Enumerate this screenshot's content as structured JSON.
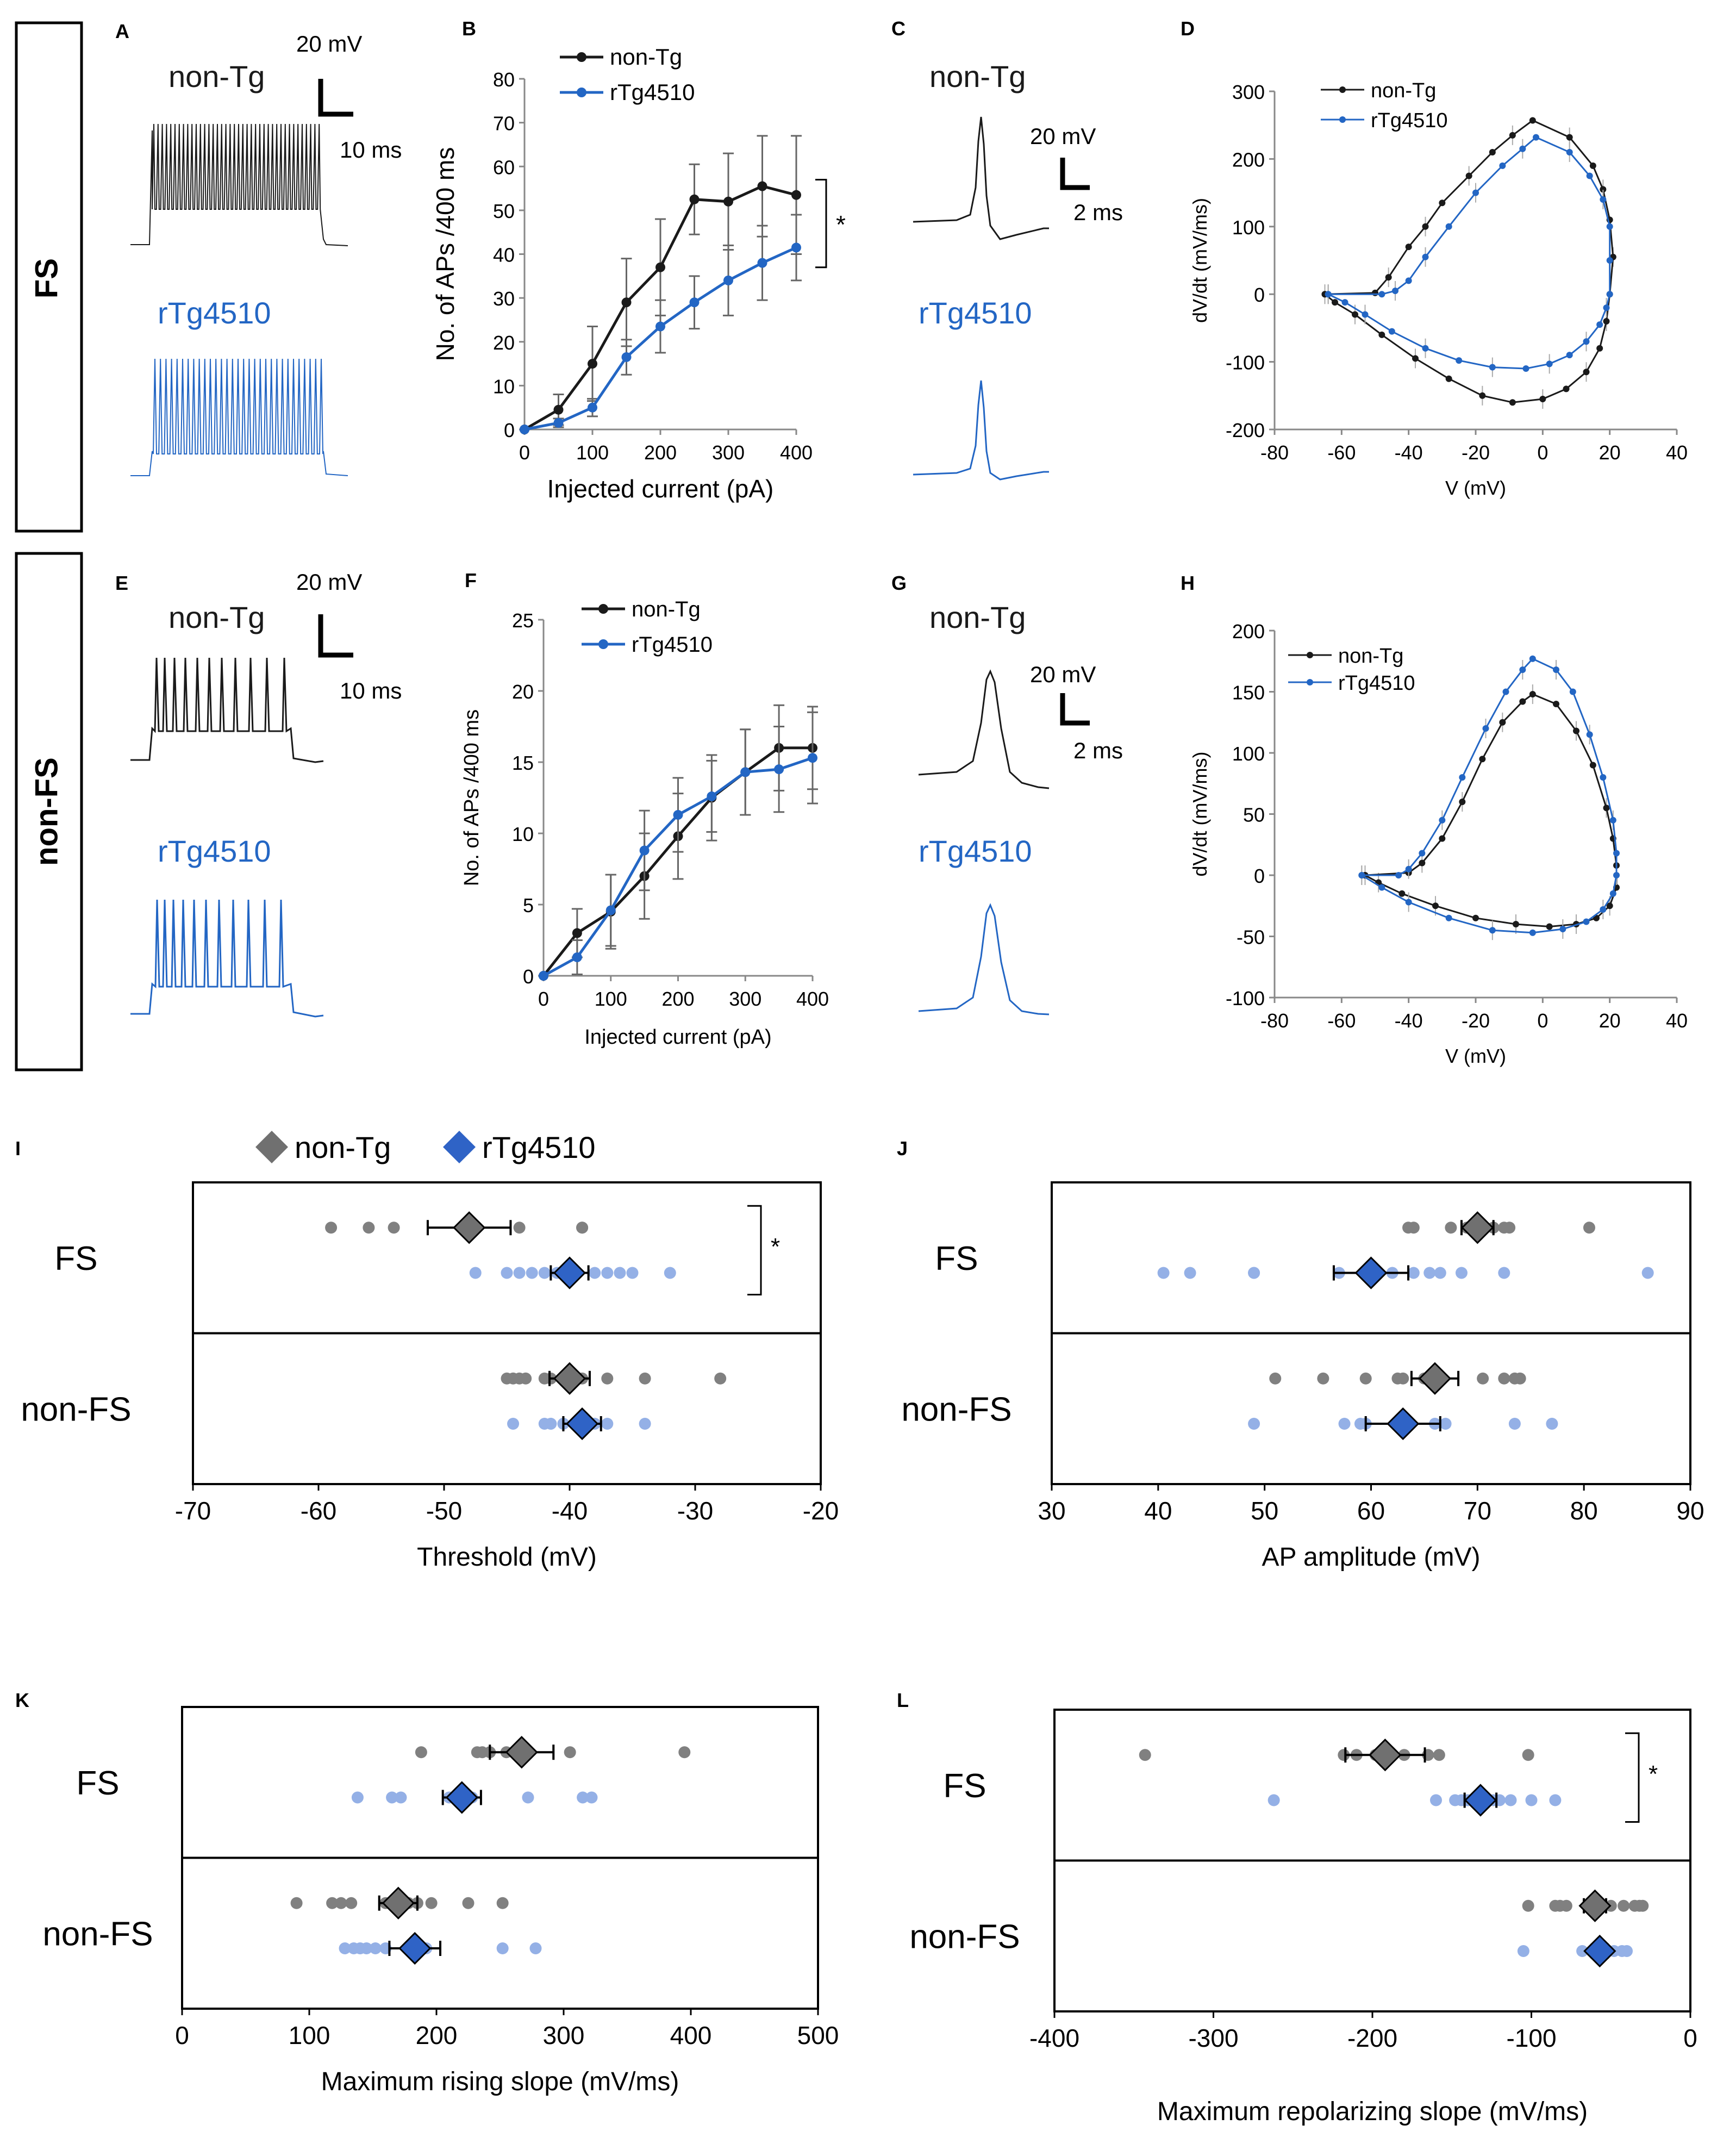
{
  "row_labels": {
    "fs": "FS",
    "nonfs": "non-FS"
  },
  "colors": {
    "nontg": "#1a1a1a",
    "rtg": "#2366c4",
    "nontg_dot": "#808080",
    "rtg_dot": "#94b0e6",
    "nontg_diamond": "#707070",
    "rtg_diamond": "#2f63c6"
  },
  "trace_panels": [
    {
      "panel": "A",
      "label_nontg": "non-Tg",
      "label_rtg": "rTg4510",
      "scale_v": "20 mV",
      "scale_t": "10 ms"
    },
    {
      "panel": "C",
      "label_nontg": "non-Tg",
      "label_rtg": "rTg4510",
      "scale_v": "20 mV",
      "scale_t": "2 ms"
    },
    {
      "panel": "E",
      "label_nontg": "non-Tg",
      "label_rtg": "rTg4510",
      "scale_v": "20 mV",
      "scale_t": "10 ms"
    },
    {
      "panel": "G",
      "label_nontg": "non-Tg",
      "label_rtg": "rTg4510",
      "scale_v": "20 mV",
      "scale_t": "2 ms"
    }
  ],
  "chart_data": [
    {
      "panel": "B",
      "type": "line",
      "xlabel": "Injected current (pA)",
      "ylabel": "No. of APs /400 ms",
      "xlim": [
        0,
        400
      ],
      "ylim": [
        0,
        80
      ],
      "xticks": [
        "0",
        "100",
        "200",
        "300",
        "400"
      ],
      "yticks": [
        "0",
        "10",
        "20",
        "30",
        "40",
        "50",
        "60",
        "70",
        "80"
      ],
      "sig": "*",
      "x": [
        0,
        50,
        100,
        150,
        200,
        250,
        300,
        350,
        400
      ],
      "series": [
        {
          "name": "non-Tg",
          "values": [
            0,
            4.5,
            15,
            29,
            37,
            52.5,
            52,
            55.5,
            53.5
          ],
          "err": [
            0,
            3.5,
            8.5,
            10,
            11,
            8,
            11,
            11.5,
            13.5
          ]
        },
        {
          "name": "rTg4510",
          "values": [
            0,
            1.5,
            5,
            16.5,
            23.5,
            29,
            34,
            38,
            41.5
          ],
          "err": [
            0,
            1,
            2,
            4,
            6,
            6,
            8,
            8.5,
            7.5
          ]
        }
      ]
    },
    {
      "panel": "D",
      "type": "line",
      "xlabel": "V (mV)",
      "ylabel": "dV/dt (mV/ms)",
      "xlim": [
        -80,
        40
      ],
      "ylim": [
        -200,
        300
      ],
      "xticks": [
        "-80",
        "-60",
        "-40",
        "-20",
        "0",
        "20",
        "40"
      ],
      "yticks": [
        "-200",
        "-100",
        "0",
        "100",
        "200",
        "300"
      ],
      "series": [
        {
          "name": "non-Tg",
          "values": [
            [
              -65,
              0
            ],
            [
              -50,
              2
            ],
            [
              -46,
              25
            ],
            [
              -40,
              70
            ],
            [
              -35,
              100
            ],
            [
              -30,
              135
            ],
            [
              -22,
              175
            ],
            [
              -15,
              210
            ],
            [
              -9,
              235
            ],
            [
              -3,
              257
            ],
            [
              8,
              232
            ],
            [
              15,
              190
            ],
            [
              18,
              155
            ],
            [
              20,
              110
            ],
            [
              21,
              55
            ],
            [
              20,
              0
            ],
            [
              19,
              -40
            ],
            [
              17,
              -80
            ],
            [
              13,
              -115
            ],
            [
              7,
              -140
            ],
            [
              0,
              -155
            ],
            [
              -9,
              -160
            ],
            [
              -18,
              -150
            ],
            [
              -28,
              -125
            ],
            [
              -38,
              -95
            ],
            [
              -48,
              -60
            ],
            [
              -56,
              -30
            ],
            [
              -62,
              -12
            ],
            [
              -65,
              0
            ]
          ]
        },
        {
          "name": "rTg4510",
          "values": [
            [
              -64,
              0
            ],
            [
              -48,
              0
            ],
            [
              -44,
              5
            ],
            [
              -40,
              20
            ],
            [
              -35,
              55
            ],
            [
              -28,
              100
            ],
            [
              -20,
              150
            ],
            [
              -12,
              190
            ],
            [
              -6,
              215
            ],
            [
              -2,
              232
            ],
            [
              8,
              210
            ],
            [
              14,
              175
            ],
            [
              18,
              140
            ],
            [
              20,
              100
            ],
            [
              20,
              50
            ],
            [
              20,
              0
            ],
            [
              19,
              -20
            ],
            [
              17,
              -45
            ],
            [
              13,
              -70
            ],
            [
              8,
              -90
            ],
            [
              2,
              -103
            ],
            [
              -5,
              -110
            ],
            [
              -15,
              -108
            ],
            [
              -25,
              -98
            ],
            [
              -35,
              -80
            ],
            [
              -45,
              -55
            ],
            [
              -53,
              -30
            ],
            [
              -59,
              -12
            ],
            [
              -64,
              0
            ]
          ]
        }
      ]
    },
    {
      "panel": "F",
      "type": "line",
      "xlabel": "Injected current (pA)",
      "ylabel": "No. of APs /400 ms",
      "xlim": [
        0,
        400
      ],
      "ylim": [
        0,
        25
      ],
      "xticks": [
        "0",
        "100",
        "200",
        "300",
        "400"
      ],
      "yticks": [
        "0",
        "5",
        "10",
        "15",
        "20",
        "25"
      ],
      "x": [
        0,
        50,
        100,
        150,
        200,
        250,
        300,
        350,
        400
      ],
      "series": [
        {
          "name": "non-Tg",
          "values": [
            0,
            3,
            4.5,
            7,
            9.8,
            12.5,
            14.3,
            16,
            16
          ],
          "err": [
            0,
            1.7,
            2.6,
            3,
            3,
            3,
            3,
            3,
            2.9
          ]
        },
        {
          "name": "rTg4510",
          "values": [
            0,
            1.3,
            4.6,
            8.8,
            11.3,
            12.6,
            14.3,
            14.5,
            15.3
          ],
          "err": [
            0,
            1.2,
            2.5,
            2.8,
            2.6,
            2.5,
            3,
            3,
            3.2
          ]
        }
      ]
    },
    {
      "panel": "H",
      "type": "line",
      "xlabel": "V (mV)",
      "ylabel": "dV/dt (mV/ms)",
      "xlim": [
        -80,
        40
      ],
      "ylim": [
        -100,
        200
      ],
      "xticks": [
        "-80",
        "-60",
        "-40",
        "-20",
        "0",
        "20",
        "40"
      ],
      "yticks": [
        "-100",
        "-50",
        "0",
        "50",
        "100",
        "150",
        "200"
      ],
      "series": [
        {
          "name": "non-Tg",
          "values": [
            [
              -53,
              0
            ],
            [
              -40,
              2
            ],
            [
              -36,
              10
            ],
            [
              -30,
              30
            ],
            [
              -24,
              60
            ],
            [
              -18,
              95
            ],
            [
              -12,
              125
            ],
            [
              -6,
              142
            ],
            [
              -3,
              148
            ],
            [
              4,
              140
            ],
            [
              10,
              118
            ],
            [
              15,
              90
            ],
            [
              19,
              55
            ],
            [
              21,
              30
            ],
            [
              22,
              8
            ],
            [
              22,
              -10
            ],
            [
              20,
              -25
            ],
            [
              16,
              -35
            ],
            [
              10,
              -40
            ],
            [
              2,
              -42
            ],
            [
              -8,
              -40
            ],
            [
              -20,
              -35
            ],
            [
              -32,
              -25
            ],
            [
              -42,
              -15
            ],
            [
              -49,
              -6
            ],
            [
              -53,
              0
            ]
          ]
        },
        {
          "name": "rTg4510",
          "values": [
            [
              -54,
              0
            ],
            [
              -43,
              0
            ],
            [
              -40,
              5
            ],
            [
              -36,
              18
            ],
            [
              -30,
              45
            ],
            [
              -24,
              80
            ],
            [
              -17,
              120
            ],
            [
              -11,
              150
            ],
            [
              -6,
              168
            ],
            [
              -3,
              177
            ],
            [
              4,
              168
            ],
            [
              9,
              150
            ],
            [
              14,
              115
            ],
            [
              18,
              80
            ],
            [
              21,
              45
            ],
            [
              22,
              18
            ],
            [
              22,
              0
            ],
            [
              21,
              -15
            ],
            [
              18,
              -28
            ],
            [
              13,
              -38
            ],
            [
              6,
              -44
            ],
            [
              -3,
              -47
            ],
            [
              -15,
              -45
            ],
            [
              -28,
              -35
            ],
            [
              -40,
              -22
            ],
            [
              -48,
              -10
            ],
            [
              -54,
              0
            ]
          ]
        }
      ]
    },
    {
      "panel": "I",
      "type": "scatter",
      "xlabel": "Threshold (mV)",
      "xlim": [
        -70,
        -20
      ],
      "xticks": [
        "-70",
        "-60",
        "-50",
        "-40",
        "-30",
        "-20"
      ],
      "legend": [
        "non-Tg",
        "rTg4510"
      ],
      "sig": "*",
      "groups": [
        {
          "name": "FS",
          "nontg": {
            "points": [
              -59,
              -56,
              -54,
              -44,
              -39,
              -39
            ],
            "mean": -48,
            "err": 3.3
          },
          "rtg": {
            "points": [
              -47.5,
              -45,
              -44,
              -43,
              -42,
              -41,
              -40,
              -38,
              -37,
              -36,
              -35,
              -32
            ],
            "mean": -40,
            "err": 1.5
          }
        },
        {
          "name": "non-FS",
          "nontg": {
            "points": [
              -45,
              -44.5,
              -44,
              -43.5,
              -42,
              -41.5,
              -40,
              -39,
              -37,
              -34,
              -28
            ],
            "mean": -40,
            "err": 1.6
          },
          "rtg": {
            "points": [
              -44.5,
              -42,
              -41.5,
              -40.5,
              -39.5,
              -39,
              -38,
              -37,
              -34
            ],
            "mean": -39,
            "err": 1.5
          }
        }
      ]
    },
    {
      "panel": "J",
      "type": "scatter",
      "xlabel": "AP amplitude (mV)",
      "xlim": [
        30,
        90
      ],
      "xticks": [
        "30",
        "40",
        "50",
        "60",
        "70",
        "80",
        "90"
      ],
      "groups": [
        {
          "name": "FS",
          "nontg": {
            "points": [
              63.5,
              64,
              67.5,
              69,
              70,
              71.5,
              72.5,
              73,
              80.5
            ],
            "mean": 70,
            "err": 1.5
          },
          "rtg": {
            "points": [
              40.5,
              43,
              49,
              49,
              57,
              60,
              62,
              64,
              65.5,
              66.5,
              68.5,
              72.5,
              86
            ],
            "mean": 60,
            "err": 3.5
          }
        },
        {
          "name": "non-FS",
          "nontg": {
            "points": [
              51,
              55.5,
              59.5,
              62.5,
              63,
              65,
              70.5,
              72.5,
              73.5,
              74
            ],
            "mean": 66,
            "err": 2.2
          },
          "rtg": {
            "points": [
              49,
              57.5,
              59,
              59.5,
              63,
              66,
              67,
              73.5,
              77
            ],
            "mean": 63,
            "err": 3.5
          }
        }
      ]
    },
    {
      "panel": "K",
      "type": "scatter",
      "xlabel": "Maximum rising slope (mV/ms)",
      "xlim": [
        0,
        500
      ],
      "xticks": [
        "0",
        "100",
        "200",
        "300",
        "400",
        "500"
      ],
      "groups": [
        {
          "name": "FS",
          "nontg": {
            "points": [
              188,
              232,
              236,
              242,
              255,
              270,
              305,
              395
            ],
            "mean": 267,
            "err": 25
          },
          "rtg": {
            "points": [
              138,
              165,
              172,
              210,
              215,
              220,
              228,
              272,
              315,
              322
            ],
            "mean": 220,
            "err": 15
          }
        },
        {
          "name": "non-FS",
          "nontg": {
            "points": [
              90,
              118,
              125,
              133,
              160,
              178,
              185,
              196,
              225,
              252
            ],
            "mean": 170,
            "err": 15
          },
          "rtg": {
            "points": [
              128,
              135,
              140,
              145,
              152,
              160,
              192,
              252,
              278
            ],
            "mean": 183,
            "err": 20
          }
        }
      ]
    },
    {
      "panel": "L",
      "type": "scatter",
      "xlabel": "Maximum repolarizing slope (mV/ms)",
      "xlim": [
        -400,
        0
      ],
      "xticks": [
        "-400",
        "-300",
        "-200",
        "-100",
        "0"
      ],
      "sig": "*",
      "groups": [
        {
          "name": "FS",
          "nontg": {
            "points": [
              -343,
              -218,
              -210,
              -198,
              -180,
              -165,
              -158,
              -102
            ],
            "mean": -192,
            "err": 25
          },
          "rtg": {
            "points": [
              -262,
              -160,
              -148,
              -144,
              -140,
              -136,
              -132,
              -130,
              -128,
              -124,
              -120,
              -113,
              -100,
              -85
            ],
            "mean": -132,
            "err": 10
          }
        },
        {
          "name": "non-FS",
          "nontg": {
            "points": [
              -102,
              -85,
              -82,
              -78,
              -65,
              -60,
              -55,
              -50,
              -42,
              -35,
              -32,
              -30
            ],
            "mean": -60,
            "err": 7
          },
          "rtg": {
            "points": [
              -105,
              -68,
              -62,
              -60,
              -57,
              -55,
              -52,
              -48,
              -43,
              -40
            ],
            "mean": -57,
            "err": 5
          }
        }
      ]
    }
  ]
}
